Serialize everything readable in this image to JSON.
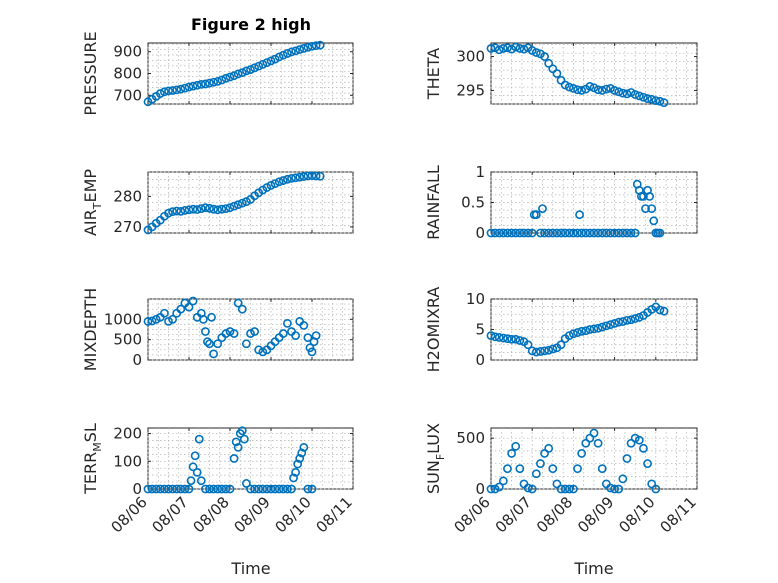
{
  "figure": {
    "title": "Figure 2 high",
    "marker_color": "#0072BD",
    "xlabel": "Time"
  },
  "chart_data": [
    {
      "id": "pressure",
      "type": "scatter",
      "ylabel": "PRESSURE",
      "ylabel_sub": "",
      "ylabel_suffix": "",
      "ylim": [
        660,
        940
      ],
      "yticks": [
        700,
        800,
        900
      ],
      "xticks": [
        "08/06",
        "08/07",
        "08/08",
        "08/09",
        "08/10",
        "08/11"
      ],
      "show_xticks": false,
      "x": [
        0.0,
        0.1,
        0.2,
        0.3,
        0.4,
        0.5,
        0.6,
        0.7,
        0.8,
        0.9,
        1.0,
        1.1,
        1.2,
        1.3,
        1.4,
        1.5,
        1.6,
        1.7,
        1.8,
        1.9,
        2.0,
        2.1,
        2.2,
        2.3,
        2.4,
        2.5,
        2.6,
        2.7,
        2.8,
        2.9,
        3.0,
        3.1,
        3.2,
        3.3,
        3.4,
        3.5,
        3.6,
        3.7,
        3.8,
        3.9,
        4.0,
        4.1,
        4.2
      ],
      "y": [
        670,
        682,
        695,
        708,
        716,
        720,
        722,
        725,
        728,
        733,
        738,
        742,
        746,
        750,
        752,
        756,
        760,
        764,
        770,
        778,
        784,
        790,
        798,
        804,
        812,
        818,
        826,
        834,
        842,
        850,
        858,
        866,
        876,
        884,
        892,
        899,
        904,
        910,
        915,
        920,
        925,
        928,
        930
      ]
    },
    {
      "id": "theta",
      "type": "scatter",
      "ylabel": "THETA",
      "ylabel_sub": "",
      "ylabel_suffix": "",
      "ylim": [
        293,
        302
      ],
      "yticks": [
        295,
        300
      ],
      "xticks": [
        "08/06",
        "08/07",
        "08/08",
        "08/09",
        "08/10",
        "08/11"
      ],
      "show_xticks": false,
      "x": [
        0.0,
        0.1,
        0.2,
        0.3,
        0.4,
        0.5,
        0.6,
        0.7,
        0.8,
        0.9,
        1.0,
        1.1,
        1.2,
        1.3,
        1.4,
        1.5,
        1.6,
        1.7,
        1.8,
        1.9,
        2.0,
        2.1,
        2.2,
        2.3,
        2.4,
        2.5,
        2.6,
        2.7,
        2.8,
        2.9,
        3.0,
        3.1,
        3.2,
        3.3,
        3.4,
        3.5,
        3.6,
        3.7,
        3.8,
        3.9,
        4.0,
        4.1,
        4.2
      ],
      "y": [
        301.2,
        301.3,
        301.0,
        301.2,
        301.3,
        301.1,
        301.4,
        301.2,
        301.1,
        301.3,
        300.9,
        300.6,
        300.4,
        300.0,
        299.0,
        298.2,
        297.5,
        296.5,
        295.8,
        295.5,
        295.3,
        295.1,
        295.0,
        295.2,
        295.6,
        295.4,
        295.1,
        295.0,
        295.2,
        295.3,
        295.0,
        294.8,
        294.6,
        294.5,
        294.7,
        294.4,
        294.2,
        294.0,
        293.8,
        293.7,
        293.5,
        293.4,
        293.2
      ]
    },
    {
      "id": "air_temp",
      "type": "scatter",
      "ylabel": "AIR",
      "ylabel_sub": "T",
      "ylabel_suffix": "EMP",
      "ylim": [
        268,
        288
      ],
      "yticks": [
        270,
        280
      ],
      "xticks": [
        "08/06",
        "08/07",
        "08/08",
        "08/09",
        "08/10",
        "08/11"
      ],
      "show_xticks": false,
      "x": [
        0.0,
        0.1,
        0.2,
        0.3,
        0.4,
        0.5,
        0.6,
        0.7,
        0.8,
        0.9,
        1.0,
        1.1,
        1.2,
        1.3,
        1.4,
        1.5,
        1.6,
        1.7,
        1.8,
        1.9,
        2.0,
        2.1,
        2.2,
        2.3,
        2.4,
        2.5,
        2.6,
        2.7,
        2.8,
        2.9,
        3.0,
        3.1,
        3.2,
        3.3,
        3.4,
        3.5,
        3.6,
        3.7,
        3.8,
        3.9,
        4.0,
        4.1,
        4.2
      ],
      "y": [
        269.0,
        270.0,
        271.2,
        272.2,
        273.5,
        274.5,
        275.0,
        275.2,
        275.1,
        275.4,
        275.6,
        275.8,
        275.7,
        276.0,
        276.3,
        276.1,
        275.8,
        275.6,
        275.8,
        276.0,
        276.3,
        276.8,
        277.3,
        277.8,
        278.3,
        279.0,
        280.2,
        281.2,
        282.1,
        282.9,
        283.6,
        284.2,
        284.8,
        285.2,
        285.6,
        285.9,
        286.1,
        286.3,
        286.5,
        286.7,
        286.8,
        286.7,
        286.6
      ]
    },
    {
      "id": "rainfall",
      "type": "scatter",
      "ylabel": "RAINFALL",
      "ylabel_sub": "",
      "ylabel_suffix": "",
      "ylim": [
        0,
        1
      ],
      "yticks": [
        0,
        0.5,
        1
      ],
      "xticks": [
        "08/06",
        "08/07",
        "08/08",
        "08/09",
        "08/10",
        "08/11"
      ],
      "show_xticks": false,
      "x": [
        0.0,
        0.1,
        0.2,
        0.3,
        0.4,
        0.5,
        0.6,
        0.7,
        0.8,
        0.9,
        1.0,
        1.05,
        1.1,
        1.2,
        1.25,
        1.3,
        1.4,
        1.5,
        1.6,
        1.7,
        1.8,
        1.9,
        2.0,
        2.1,
        2.15,
        2.2,
        2.3,
        2.4,
        2.5,
        2.6,
        2.7,
        2.8,
        2.9,
        3.0,
        3.1,
        3.2,
        3.3,
        3.4,
        3.5,
        3.55,
        3.6,
        3.65,
        3.7,
        3.75,
        3.8,
        3.85,
        3.9,
        3.95,
        4.0,
        4.05,
        4.1
      ],
      "y": [
        0,
        0,
        0,
        0,
        0,
        0,
        0,
        0,
        0,
        0,
        0,
        0.3,
        0.3,
        0,
        0.4,
        0,
        0,
        0,
        0,
        0,
        0,
        0,
        0,
        0,
        0.3,
        0,
        0,
        0,
        0,
        0,
        0,
        0,
        0,
        0,
        0,
        0,
        0,
        0,
        0,
        0.8,
        0.7,
        0.6,
        0.6,
        0.4,
        0.7,
        0.6,
        0.4,
        0.2,
        0,
        0,
        0
      ]
    },
    {
      "id": "mixdepth",
      "type": "scatter",
      "ylabel": "MIXDEPTH",
      "ylabel_sub": "",
      "ylabel_suffix": "",
      "ylim": [
        0,
        1500
      ],
      "yticks": [
        0,
        500,
        1000
      ],
      "xticks": [
        "08/06",
        "08/07",
        "08/08",
        "08/09",
        "08/10",
        "08/11"
      ],
      "show_xticks": false,
      "x": [
        0.0,
        0.1,
        0.2,
        0.3,
        0.4,
        0.5,
        0.6,
        0.7,
        0.8,
        0.9,
        1.0,
        1.1,
        1.2,
        1.3,
        1.35,
        1.4,
        1.45,
        1.5,
        1.55,
        1.6,
        1.7,
        1.8,
        1.9,
        2.0,
        2.1,
        2.2,
        2.3,
        2.4,
        2.5,
        2.6,
        2.7,
        2.8,
        2.9,
        3.0,
        3.1,
        3.2,
        3.3,
        3.4,
        3.5,
        3.6,
        3.7,
        3.8,
        3.9,
        3.95,
        4.0,
        4.05,
        4.1
      ],
      "y": [
        950,
        960,
        1000,
        1050,
        1150,
        950,
        1000,
        1150,
        1250,
        1400,
        1300,
        1450,
        1050,
        1150,
        1000,
        700,
        450,
        400,
        1050,
        150,
        400,
        550,
        650,
        700,
        650,
        1400,
        1250,
        400,
        650,
        700,
        250,
        200,
        250,
        350,
        450,
        550,
        650,
        900,
        700,
        600,
        950,
        850,
        550,
        300,
        200,
        450,
        600
      ]
    },
    {
      "id": "h2omixra",
      "type": "scatter",
      "ylabel": "H2OMIXRA",
      "ylabel_sub": "",
      "ylabel_suffix": "",
      "ylim": [
        0,
        10
      ],
      "yticks": [
        0,
        5,
        10
      ],
      "xticks": [
        "08/06",
        "08/07",
        "08/08",
        "08/09",
        "08/10",
        "08/11"
      ],
      "show_xticks": false,
      "x": [
        0.0,
        0.1,
        0.2,
        0.3,
        0.4,
        0.5,
        0.6,
        0.7,
        0.8,
        0.9,
        1.0,
        1.1,
        1.2,
        1.3,
        1.4,
        1.5,
        1.6,
        1.7,
        1.8,
        1.9,
        2.0,
        2.1,
        2.2,
        2.3,
        2.4,
        2.5,
        2.6,
        2.7,
        2.8,
        2.9,
        3.0,
        3.1,
        3.2,
        3.3,
        3.4,
        3.5,
        3.6,
        3.7,
        3.8,
        3.9,
        4.0,
        4.1,
        4.2
      ],
      "y": [
        4.0,
        3.8,
        3.7,
        3.6,
        3.5,
        3.4,
        3.4,
        3.2,
        3.0,
        2.5,
        1.5,
        1.3,
        1.4,
        1.5,
        1.6,
        1.8,
        2.0,
        2.5,
        3.5,
        4.0,
        4.3,
        4.5,
        4.7,
        4.8,
        5.0,
        5.1,
        5.2,
        5.4,
        5.6,
        5.8,
        6.0,
        6.2,
        6.3,
        6.5,
        6.6,
        6.8,
        7.0,
        7.3,
        7.8,
        8.3,
        8.7,
        8.2,
        8.0
      ]
    },
    {
      "id": "terr_msl",
      "type": "scatter",
      "ylabel": "TERR",
      "ylabel_sub": "M",
      "ylabel_suffix": "SL",
      "ylim": [
        0,
        220
      ],
      "yticks": [
        0,
        100,
        200
      ],
      "xticks": [
        "08/06",
        "08/07",
        "08/08",
        "08/09",
        "08/10",
        "08/11"
      ],
      "show_xticks": true,
      "x": [
        0.0,
        0.1,
        0.2,
        0.3,
        0.4,
        0.5,
        0.6,
        0.7,
        0.8,
        0.9,
        1.0,
        1.05,
        1.1,
        1.15,
        1.2,
        1.25,
        1.3,
        1.4,
        1.5,
        1.6,
        1.7,
        1.8,
        1.9,
        2.0,
        2.1,
        2.15,
        2.2,
        2.25,
        2.3,
        2.35,
        2.4,
        2.5,
        2.6,
        2.7,
        2.8,
        2.9,
        3.0,
        3.1,
        3.2,
        3.3,
        3.4,
        3.5,
        3.55,
        3.6,
        3.65,
        3.7,
        3.75,
        3.8,
        3.9,
        4.0
      ],
      "y": [
        0,
        0,
        0,
        0,
        0,
        0,
        0,
        0,
        0,
        0,
        0,
        30,
        80,
        120,
        60,
        180,
        30,
        0,
        0,
        0,
        0,
        0,
        0,
        0,
        110,
        170,
        150,
        200,
        210,
        180,
        20,
        0,
        0,
        0,
        0,
        0,
        0,
        0,
        0,
        0,
        0,
        0,
        40,
        60,
        90,
        110,
        130,
        150,
        0,
        0
      ]
    },
    {
      "id": "sun_flux",
      "type": "scatter",
      "ylabel": "SUN",
      "ylabel_sub": "F",
      "ylabel_suffix": "LUX",
      "ylim": [
        0,
        600
      ],
      "yticks": [
        0,
        500
      ],
      "xticks": [
        "08/06",
        "08/07",
        "08/08",
        "08/09",
        "08/10",
        "08/11"
      ],
      "show_xticks": true,
      "x": [
        0.0,
        0.1,
        0.2,
        0.3,
        0.4,
        0.5,
        0.6,
        0.7,
        0.8,
        0.9,
        1.0,
        1.1,
        1.2,
        1.3,
        1.4,
        1.5,
        1.6,
        1.7,
        1.8,
        1.9,
        2.0,
        2.1,
        2.2,
        2.3,
        2.4,
        2.5,
        2.6,
        2.7,
        2.8,
        2.9,
        3.0,
        3.1,
        3.2,
        3.3,
        3.4,
        3.5,
        3.6,
        3.7,
        3.8,
        3.9,
        4.0
      ],
      "y": [
        0,
        0,
        20,
        80,
        200,
        350,
        420,
        200,
        50,
        10,
        0,
        150,
        250,
        350,
        400,
        200,
        50,
        0,
        0,
        0,
        0,
        200,
        350,
        450,
        500,
        550,
        450,
        200,
        50,
        10,
        0,
        0,
        100,
        300,
        450,
        500,
        480,
        400,
        250,
        50,
        0
      ]
    }
  ]
}
